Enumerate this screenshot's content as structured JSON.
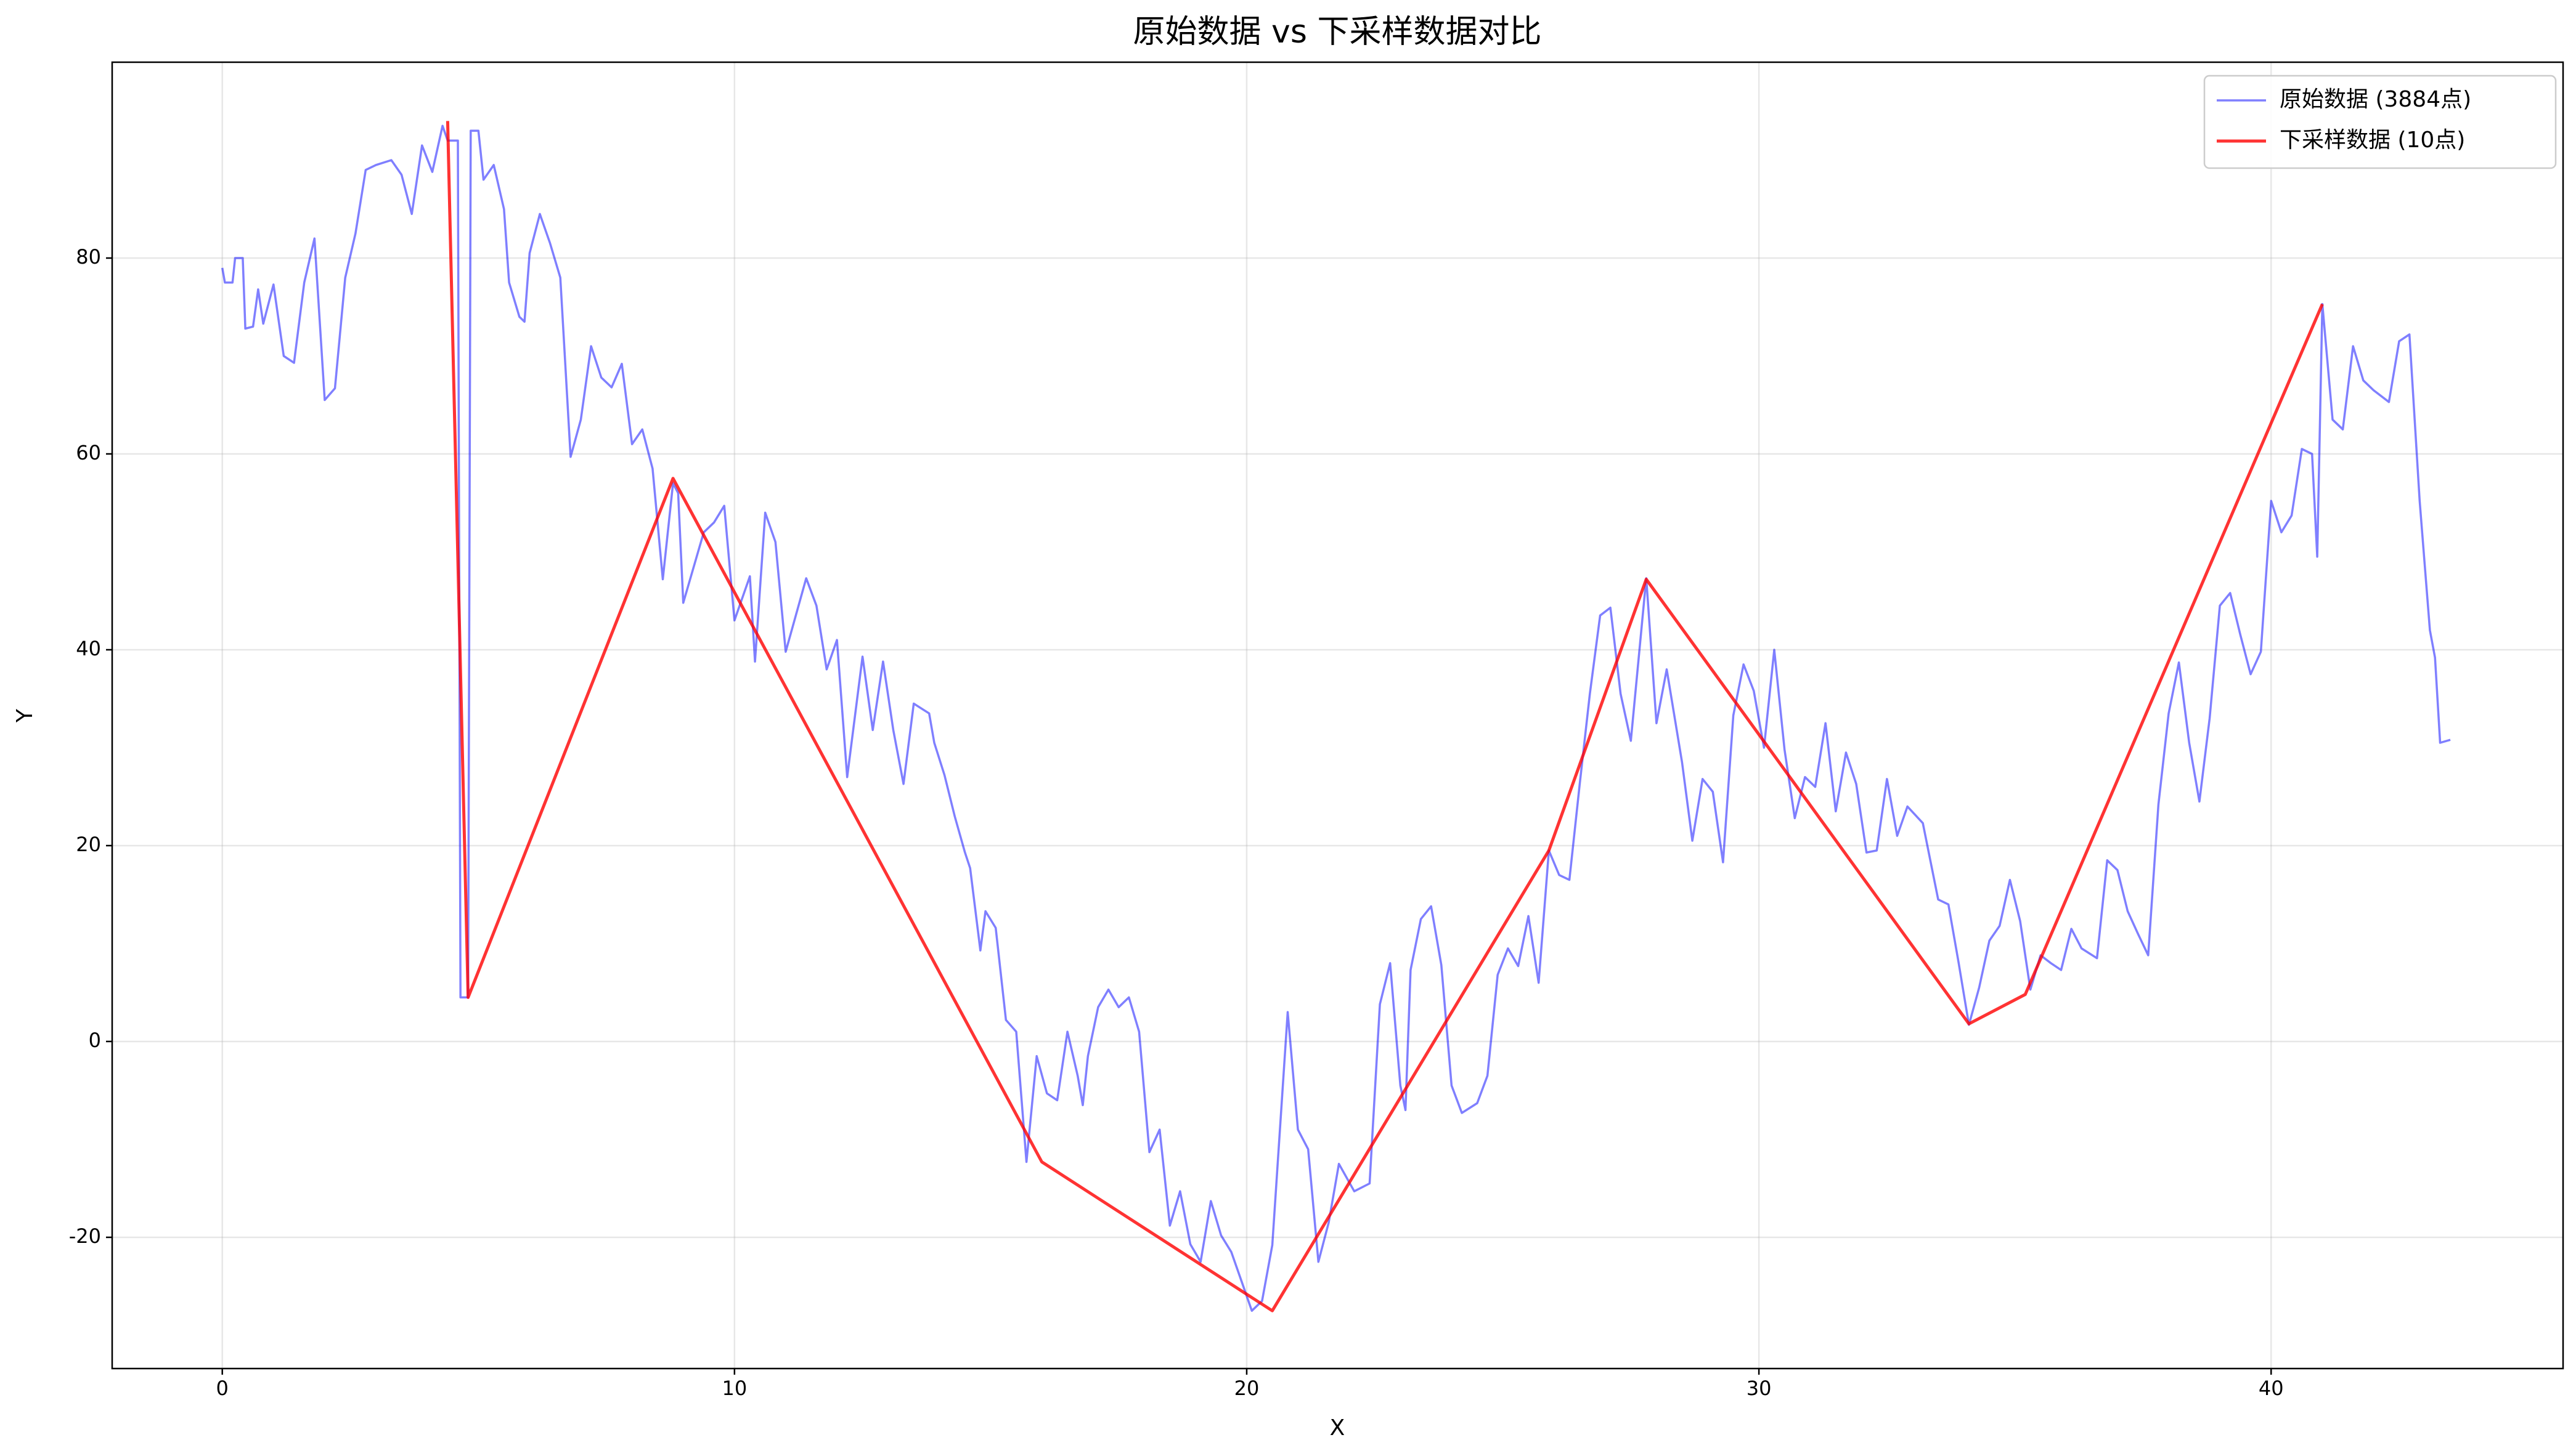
{
  "chart_data": {
    "type": "line",
    "title": "原始数据 vs 下采样数据对比",
    "xlabel": "X",
    "ylabel": "Y",
    "xlim": [
      -2.15,
      45.7
    ],
    "ylim": [
      -33.4,
      100
    ],
    "xticks": [
      0,
      10,
      20,
      30,
      40
    ],
    "yticks": [
      -20,
      0,
      20,
      40,
      60,
      80
    ],
    "grid": true,
    "legend": "upper right",
    "series": [
      {
        "name": "原始数据 (3884点)",
        "color": "#0000ff",
        "x": [
          0,
          0.05,
          0.2,
          0.25,
          0.4,
          0.45,
          0.6,
          0.7,
          0.8,
          1.0,
          1.2,
          1.4,
          1.6,
          1.8,
          2.0,
          2.2,
          2.4,
          2.6,
          2.8,
          3.0,
          3.3,
          3.5,
          3.7,
          3.9,
          4.1,
          4.3,
          4.4,
          4.6,
          4.65,
          4.8,
          4.85,
          5.0,
          5.1,
          5.3,
          5.5,
          5.6,
          5.8,
          5.9,
          6.0,
          6.2,
          6.4,
          6.6,
          6.8,
          7.0,
          7.2,
          7.4,
          7.6,
          7.8,
          8.0,
          8.2,
          8.4,
          8.6,
          8.8,
          8.9,
          9.0,
          9.4,
          9.6,
          9.8,
          10.0,
          10.3,
          10.4,
          10.6,
          10.8,
          11.0,
          11.4,
          11.6,
          11.8,
          12.0,
          12.2,
          12.5,
          12.7,
          12.9,
          13.1,
          13.3,
          13.5,
          13.8,
          13.9,
          14.1,
          14.3,
          14.5,
          14.6,
          14.8,
          14.9,
          15.1,
          15.3,
          15.5,
          15.7,
          15.9,
          16.1,
          16.3,
          16.5,
          16.7,
          16.8,
          16.9,
          17.1,
          17.3,
          17.5,
          17.7,
          17.9,
          18.1,
          18.3,
          18.5,
          18.7,
          18.9,
          19.1,
          19.3,
          19.5,
          19.7,
          19.9,
          20.1,
          20.3,
          20.5,
          20.8,
          21.0,
          21.2,
          21.4,
          21.6,
          21.8,
          22.1,
          22.4,
          22.6,
          22.8,
          23.0,
          23.1,
          23.2,
          23.4,
          23.6,
          23.8,
          24.0,
          24.2,
          24.5,
          24.7,
          24.9,
          25.1,
          25.3,
          25.5,
          25.7,
          25.9,
          26.1,
          26.3,
          26.5,
          26.7,
          26.9,
          27.1,
          27.3,
          27.5,
          27.8,
          28.0,
          28.2,
          28.5,
          28.7,
          28.9,
          29.1,
          29.3,
          29.5,
          29.7,
          29.9,
          30.1,
          30.3,
          30.5,
          30.7,
          30.9,
          31.1,
          31.3,
          31.5,
          31.7,
          31.9,
          32.1,
          32.3,
          32.5,
          32.7,
          32.9,
          33.2,
          33.5,
          33.7,
          33.9,
          34.1,
          34.3,
          34.5,
          34.7,
          34.9,
          35.1,
          35.3,
          35.5,
          35.7,
          35.9,
          36.1,
          36.3,
          36.6,
          36.8,
          37.0,
          37.2,
          37.4,
          37.6,
          37.8,
          38.0,
          38.2,
          38.4,
          38.6,
          38.8,
          39.0,
          39.2,
          39.4,
          39.6,
          39.8,
          40.0,
          40.2,
          40.4,
          40.6,
          40.8,
          40.9,
          41.0,
          41.2,
          41.4,
          41.6,
          41.8,
          42.0,
          42.3,
          42.5,
          42.7,
          42.9,
          43.1,
          43.2,
          43.3,
          43.5
        ],
        "values": [
          79,
          77.5,
          77.5,
          80,
          80,
          72.8,
          73,
          76.8,
          73.3,
          77.3,
          70,
          69.3,
          77.5,
          82,
          65.5,
          66.7,
          78,
          82.5,
          89,
          89.5,
          90,
          88.5,
          84.5,
          91.5,
          88.8,
          93.5,
          92,
          92,
          4.5,
          4.5,
          93,
          93,
          88,
          89.5,
          85,
          77.5,
          74,
          73.5,
          80.5,
          84.5,
          81.5,
          78,
          59.7,
          63.5,
          71,
          67.8,
          66.8,
          69.2,
          61,
          62.5,
          58.5,
          47.2,
          57,
          56,
          44.8,
          52,
          53,
          54.7,
          43,
          47.5,
          38.8,
          54,
          51,
          39.8,
          47.3,
          44.5,
          38,
          41,
          27,
          39.3,
          31.8,
          38.8,
          31.8,
          26.3,
          34.5,
          33.5,
          30.5,
          27.2,
          23,
          19.3,
          17.7,
          9.3,
          13.3,
          11.6,
          2.2,
          1,
          -12.3,
          -1.5,
          -5.3,
          -6,
          1,
          -3.5,
          -6.5,
          -1.5,
          3.5,
          5.3,
          3.5,
          4.5,
          1,
          -11.3,
          -9,
          -18.8,
          -15.3,
          -20.7,
          -22.5,
          -16.3,
          -19.8,
          -21.5,
          -24.5,
          -27.5,
          -26.5,
          -20.8,
          3,
          -9,
          -11,
          -22.5,
          -18.5,
          -12.5,
          -15.3,
          -14.5,
          3.8,
          8,
          -4.5,
          -7,
          7.3,
          12.5,
          13.8,
          7.8,
          -4.5,
          -7.3,
          -6.3,
          -3.5,
          6.8,
          9.5,
          7.7,
          12.8,
          6,
          19.5,
          17,
          16.5,
          26.2,
          35.5,
          43.5,
          44.3,
          35.5,
          30.7,
          47.3,
          32.5,
          38,
          28.5,
          20.5,
          26.8,
          25.5,
          18.3,
          33.3,
          38.5,
          35.8,
          30,
          40,
          29.8,
          22.8,
          27,
          26,
          32.5,
          23.5,
          29.5,
          26.3,
          19.3,
          19.5,
          26.8,
          21,
          24,
          22.3,
          14.5,
          14,
          8,
          1.7,
          5.5,
          10.3,
          11.8,
          16.5,
          12.3,
          5.3,
          8.8,
          8,
          7.3,
          11.5,
          9.5,
          8.5,
          18.5,
          17.5,
          13.3,
          11,
          8.8,
          24.2,
          33.5,
          38.7,
          30.5,
          24.5,
          33,
          44.5,
          45.8,
          41.5,
          37.5,
          39.8,
          55.2,
          52,
          53.7,
          60.5,
          60,
          49.5,
          75.3,
          63.5,
          62.5,
          71,
          67.5,
          66.5,
          65.3,
          71.5,
          72.2,
          55.2,
          42,
          39.2,
          30.5,
          30.8
        ]
      },
      {
        "name": "下采样数据 (10点)",
        "color": "#ff0000",
        "x": [
          4.4,
          4.8,
          8.8,
          16.0,
          20.5,
          25.9,
          27.8,
          34.1,
          35.2,
          41.0
        ],
        "values": [
          94,
          4.5,
          57.5,
          -12.3,
          -27.5,
          19.5,
          47.2,
          1.8,
          4.8,
          75.3
        ]
      }
    ]
  }
}
